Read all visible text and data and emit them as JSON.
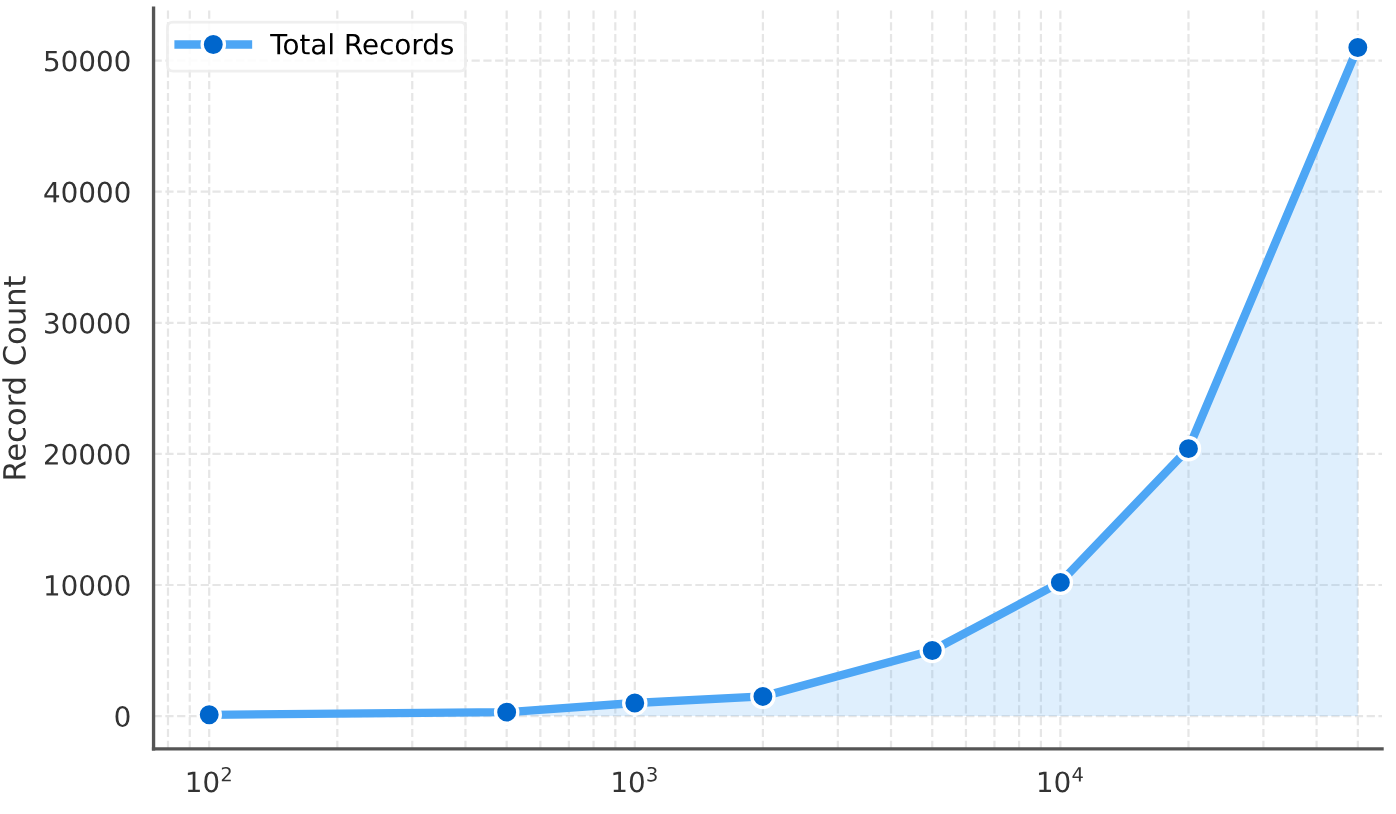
{
  "chart_data": {
    "type": "area",
    "ylabel": "Record Count",
    "x": [
      100,
      500,
      1000,
      2000,
      5000,
      10000,
      20000,
      50000
    ],
    "series": [
      {
        "name": "Total Records",
        "color": "#4da6f5",
        "values": [
          100,
          300,
          1000,
          1500,
          5000,
          10200,
          20400,
          51000
        ]
      }
    ],
    "log": "x",
    "xlim": [
      74,
      57000
    ],
    "xticks": [
      {
        "value": 100,
        "label": "10$^{2}$"
      },
      {
        "value": 1000,
        "label": "10$^{3}$"
      },
      {
        "value": 10000,
        "label": "10$^{4}$"
      }
    ],
    "ylim": [
      -2500,
      54000
    ],
    "yticks": [
      0,
      10000,
      20000,
      30000,
      40000,
      50000
    ],
    "grid": true,
    "legend": "top left",
    "marker": "circle",
    "line_style": "solid"
  }
}
